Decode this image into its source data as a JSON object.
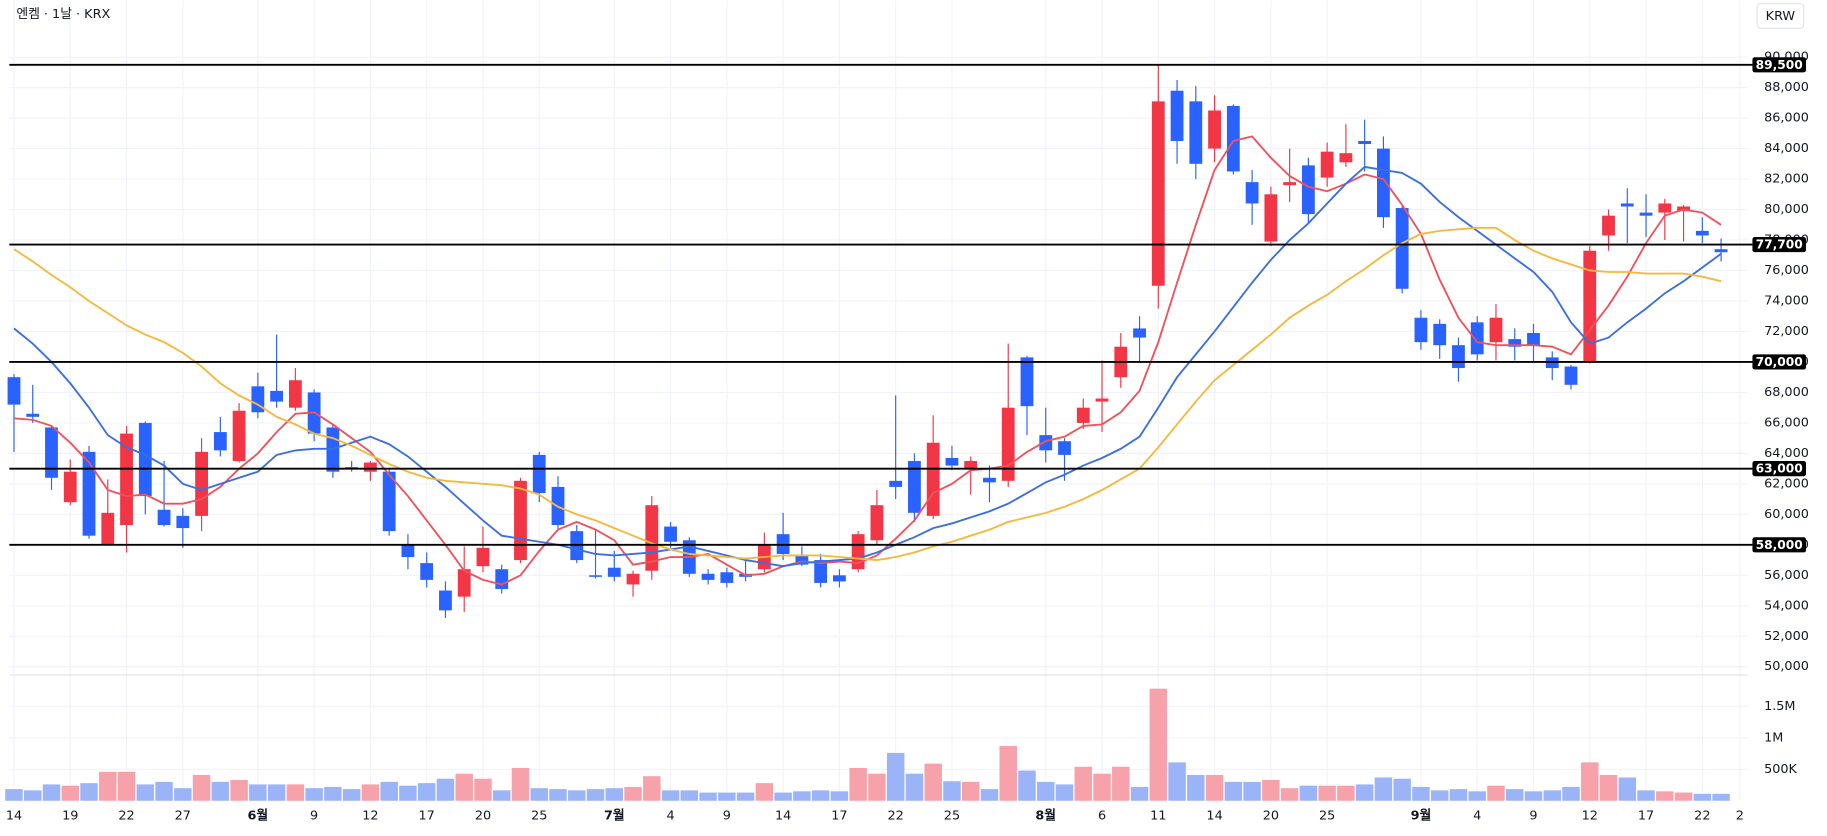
{
  "chart_data": {
    "type": "candlestick",
    "title": "엔켐 · 1날 · KRX",
    "currency": "KRW",
    "categories": [
      "14",
      null,
      null,
      "19",
      null,
      null,
      "22",
      null,
      null,
      "27",
      null,
      null,
      null,
      "6월",
      null,
      null,
      "9",
      null,
      null,
      "12",
      null,
      null,
      "17",
      null,
      null,
      "20",
      null,
      null,
      "25",
      null,
      null,
      null,
      "7월",
      null,
      null,
      "4",
      null,
      null,
      "9",
      null,
      null,
      "14",
      null,
      null,
      "17",
      null,
      null,
      "22",
      null,
      null,
      "25",
      null,
      null,
      null,
      null,
      "8월",
      null,
      null,
      "6",
      null,
      null,
      "11",
      null,
      null,
      "14",
      null,
      null,
      "20",
      null,
      null,
      "25",
      null,
      null,
      null,
      null,
      "9월",
      null,
      null,
      "4",
      null,
      null,
      "9",
      null,
      null,
      "12",
      null,
      null,
      "17",
      null,
      null,
      "22",
      null,
      "2"
    ],
    "open": [
      69000,
      66600,
      65700,
      60800,
      64100,
      58000,
      59300,
      66000,
      60300,
      59900,
      59900,
      65400,
      63500,
      68400,
      68100,
      67000,
      68000,
      65700,
      63100,
      62800,
      62800,
      58000,
      56800,
      55000,
      54600,
      56600,
      56400,
      57000,
      63900,
      61800,
      58900,
      56000,
      56500,
      55400,
      56300,
      59200,
      58300,
      56100,
      56200,
      56100,
      56400,
      58700,
      57300,
      57000,
      56000,
      56400,
      58300,
      62200,
      63500,
      59900,
      63700,
      63000,
      62400,
      62200,
      70300,
      65200,
      64800,
      66000,
      67400,
      69000,
      72200,
      75000,
      87800,
      87100,
      84000,
      86800,
      81800,
      77900,
      81600,
      82900,
      82100,
      83100,
      84500,
      84000,
      80100,
      72900,
      72500,
      71100,
      72600,
      71300,
      71500,
      71900,
      70300,
      69700,
      70000,
      78300,
      80400,
      79800,
      79800,
      79900,
      78600,
      77400,
      null
    ],
    "high": [
      69200,
      68500,
      65800,
      63600,
      64500,
      62300,
      65800,
      66100,
      63500,
      60400,
      65000,
      66400,
      67300,
      69300,
      71800,
      69600,
      68200,
      65900,
      63500,
      63500,
      63000,
      58700,
      57500,
      55600,
      57900,
      59200,
      56700,
      62400,
      64100,
      62500,
      59300,
      59000,
      57600,
      56300,
      61200,
      59500,
      58500,
      56400,
      56500,
      57000,
      58800,
      60100,
      57900,
      57400,
      56400,
      58900,
      61600,
      67800,
      64000,
      66500,
      64500,
      63800,
      63200,
      71200,
      70400,
      67000,
      65000,
      67600,
      70100,
      71900,
      73000,
      89500,
      88500,
      88100,
      87500,
      86900,
      82600,
      81500,
      84000,
      83400,
      84400,
      85600,
      85900,
      84800,
      80300,
      73400,
      72800,
      71600,
      73000,
      73800,
      72200,
      72500,
      70700,
      69800,
      77600,
      80000,
      81400,
      81000,
      80700,
      80300,
      79500,
      78100,
      null
    ],
    "low": [
      64100,
      66000,
      61600,
      60600,
      58400,
      58000,
      57500,
      60000,
      59200,
      57800,
      58900,
      63800,
      63400,
      66300,
      67000,
      66800,
      64800,
      62400,
      62800,
      62200,
      58600,
      56400,
      55200,
      53200,
      53600,
      56200,
      54800,
      56800,
      60800,
      59000,
      56800,
      55800,
      55600,
      54600,
      55700,
      57800,
      55900,
      55400,
      55200,
      55600,
      56200,
      57000,
      56600,
      55200,
      55200,
      56200,
      58000,
      61000,
      59500,
      59700,
      62900,
      61300,
      60800,
      61800,
      65200,
      63400,
      62200,
      65600,
      65400,
      68300,
      70000,
      73500,
      83000,
      82000,
      83100,
      82300,
      79000,
      77600,
      80500,
      79100,
      81500,
      82800,
      82500,
      78800,
      74500,
      70800,
      70200,
      68700,
      70100,
      70100,
      70100,
      70000,
      68800,
      68200,
      69900,
      77300,
      77800,
      78200,
      78000,
      77900,
      77800,
      76600,
      null
    ],
    "close": [
      67200,
      66400,
      62400,
      62800,
      58600,
      60100,
      65300,
      61200,
      59300,
      59100,
      64100,
      64200,
      66800,
      66700,
      67400,
      68800,
      65300,
      62800,
      63000,
      63400,
      58900,
      57200,
      55700,
      53700,
      56400,
      57800,
      55100,
      62200,
      61400,
      59300,
      57000,
      55900,
      55900,
      56100,
      60600,
      58200,
      56100,
      55700,
      55500,
      55900,
      58000,
      57400,
      56700,
      55500,
      55600,
      58700,
      60600,
      61800,
      60100,
      64700,
      63200,
      63500,
      62100,
      67000,
      67100,
      64200,
      63900,
      67000,
      67600,
      71000,
      71600,
      87100,
      84500,
      83000,
      86500,
      82500,
      80400,
      81000,
      81800,
      79700,
      83800,
      83700,
      84300,
      79500,
      74800,
      71300,
      71100,
      69600,
      70500,
      72900,
      71000,
      71100,
      69600,
      68500,
      77300,
      79600,
      80200,
      79600,
      80400,
      80200,
      78300,
      77200,
      null
    ],
    "volume": [
      185000,
      165000,
      260000,
      240000,
      280000,
      460000,
      460000,
      260000,
      300000,
      200000,
      410000,
      300000,
      330000,
      260000,
      260000,
      260000,
      200000,
      220000,
      185000,
      260000,
      300000,
      240000,
      280000,
      350000,
      430000,
      350000,
      165000,
      520000,
      200000,
      185000,
      165000,
      185000,
      200000,
      220000,
      390000,
      165000,
      165000,
      130000,
      130000,
      130000,
      280000,
      130000,
      150000,
      165000,
      150000,
      520000,
      430000,
      760000,
      430000,
      590000,
      310000,
      300000,
      185000,
      870000,
      480000,
      300000,
      260000,
      540000,
      430000,
      540000,
      220000,
      1780000,
      610000,
      410000,
      410000,
      300000,
      300000,
      330000,
      200000,
      240000,
      240000,
      240000,
      260000,
      370000,
      350000,
      220000,
      165000,
      185000,
      150000,
      240000,
      185000,
      150000,
      165000,
      220000,
      610000,
      410000,
      370000,
      165000,
      150000,
      130000,
      110000,
      110000,
      null
    ],
    "up_color": "#f23645",
    "down_color": "#2962ff",
    "volume_up_color": "#f7a1aa",
    "volume_down_color": "#9bb4f7",
    "series": [
      {
        "color": "#f0525c",
        "values": [
          66300,
          66200,
          65800,
          64700,
          63400,
          61600,
          61200,
          61300,
          60700,
          60700,
          61000,
          61800,
          63000,
          64000,
          65400,
          66600,
          66700,
          65900,
          65000,
          64100,
          62600,
          61200,
          59600,
          58000,
          56300,
          55700,
          55400,
          56000,
          57600,
          59000,
          59500,
          59000,
          58300,
          56700,
          56900,
          57200,
          57200,
          57400,
          56700,
          56000,
          56100,
          56600,
          56900,
          56800,
          56900,
          56800,
          57300,
          58400,
          59600,
          61400,
          62000,
          62900,
          63000,
          63200,
          64100,
          64800,
          65100,
          65800,
          65900,
          66700,
          68100,
          71300,
          75200,
          79000,
          82600,
          84500,
          84800,
          83400,
          82200,
          81500,
          81200,
          81700,
          82300,
          82000,
          80300,
          78400,
          75400,
          72900,
          71300,
          71100,
          71100,
          71100,
          71000,
          70500,
          72100,
          73700,
          75600,
          77800,
          79600,
          80000,
          79800,
          79000,
          null
        ]
      },
      {
        "color": "#3c6ee0",
        "values": [
          72200,
          71200,
          70000,
          68600,
          67000,
          65200,
          64400,
          63900,
          63200,
          62000,
          61600,
          62000,
          62400,
          62800,
          63900,
          64200,
          64300,
          64300,
          64700,
          65100,
          64600,
          63800,
          62800,
          61800,
          60700,
          59600,
          58600,
          58400,
          58200,
          58000,
          57700,
          57400,
          57300,
          57400,
          57500,
          57700,
          57900,
          57600,
          57300,
          57000,
          56800,
          56600,
          56800,
          56900,
          57000,
          57100,
          57500,
          58000,
          58500,
          59100,
          59400,
          59800,
          60200,
          60700,
          61400,
          62100,
          62600,
          63200,
          63700,
          64300,
          65100,
          67000,
          69000,
          70500,
          72000,
          73600,
          75200,
          76700,
          78000,
          79100,
          80400,
          81700,
          82800,
          82600,
          82400,
          81700,
          80500,
          79500,
          78600,
          77700,
          76800,
          75900,
          74600,
          72600,
          71200,
          71600,
          72600,
          73500,
          74500,
          75300,
          76200,
          77100,
          null
        ]
      },
      {
        "color": "#f5b83d",
        "values": [
          77400,
          76600,
          75700,
          74900,
          74000,
          73200,
          72400,
          71800,
          71300,
          70600,
          69700,
          68600,
          67800,
          67200,
          66400,
          65900,
          65300,
          65000,
          64500,
          63900,
          63300,
          62800,
          62400,
          62200,
          62100,
          62000,
          61900,
          61700,
          61300,
          60500,
          60000,
          59600,
          59100,
          58600,
          58100,
          57700,
          57400,
          57300,
          57200,
          57100,
          57200,
          57300,
          57300,
          57300,
          57200,
          57100,
          57000,
          57200,
          57500,
          57900,
          58200,
          58600,
          59000,
          59500,
          59800,
          60100,
          60500,
          61000,
          61600,
          62300,
          63000,
          64400,
          65900,
          67400,
          68800,
          69800,
          70800,
          71800,
          72900,
          73700,
          74400,
          75300,
          76100,
          77000,
          77800,
          78400,
          78600,
          78700,
          78800,
          78800,
          78000,
          77300,
          76800,
          76400,
          76000,
          75900,
          75900,
          75800,
          75800,
          75800,
          75600,
          75300,
          null
        ]
      }
    ],
    "hlines": [
      {
        "value": 89500,
        "label": "89,500"
      },
      {
        "value": 77700,
        "label": "77,700"
      },
      {
        "value": 70000,
        "label": "70,000"
      },
      {
        "value": 63000,
        "label": "63,000"
      },
      {
        "value": 58000,
        "label": "58,000"
      }
    ],
    "ylim": [
      49540,
      92050
    ],
    "yticks": [
      {
        "value": 50000,
        "label": "50,000"
      },
      {
        "value": 52000,
        "label": "52,000"
      },
      {
        "value": 54000,
        "label": "54,000"
      },
      {
        "value": 56000,
        "label": "56,000"
      },
      {
        "value": 58000,
        "label": "58,000"
      },
      {
        "value": 60000,
        "label": "60,000"
      },
      {
        "value": 62000,
        "label": "62,000"
      },
      {
        "value": 64000,
        "label": "64,000"
      },
      {
        "value": 66000,
        "label": "66,000"
      },
      {
        "value": 68000,
        "label": "68,000"
      },
      {
        "value": 70000,
        "label": "70,000"
      },
      {
        "value": 72000,
        "label": "72,000"
      },
      {
        "value": 74000,
        "label": "74,000"
      },
      {
        "value": 76000,
        "label": "76,000"
      },
      {
        "value": 78000,
        "label": "78,000"
      },
      {
        "value": 80000,
        "label": "80,000"
      },
      {
        "value": 82000,
        "label": "82,000"
      },
      {
        "value": 84000,
        "label": "84,000"
      },
      {
        "value": 86000,
        "label": "86,000"
      },
      {
        "value": 88000,
        "label": "88,000"
      },
      {
        "value": 90000,
        "label": "90,000"
      }
    ],
    "y2lim": [
      0,
      1980000
    ],
    "y2ticks": [
      {
        "value": 500000,
        "label": "500K"
      },
      {
        "value": 1000000,
        "label": "1M"
      },
      {
        "value": 1500000,
        "label": "1.5M"
      }
    ],
    "grid": true
  }
}
